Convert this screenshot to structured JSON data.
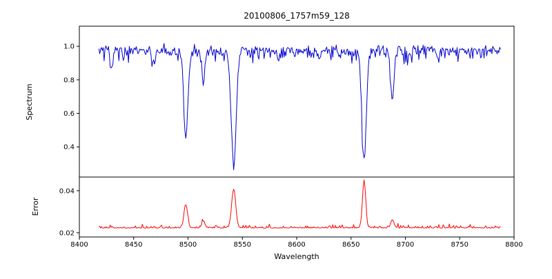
{
  "figure": {
    "title": "20100806_1757m59_128",
    "background": "#ffffff",
    "frame_color": "#000000",
    "text_color": "#000000"
  },
  "axes": {
    "xlabel": "Wavelength",
    "xlim": [
      8400,
      8800
    ],
    "xticks": [
      8400,
      8450,
      8500,
      8550,
      8600,
      8650,
      8700,
      8750,
      8800
    ],
    "xtick_labels": [
      "8400",
      "8450",
      "8500",
      "8550",
      "8600",
      "8650",
      "8700",
      "8750",
      "8800"
    ]
  },
  "chart_data": [
    {
      "type": "line",
      "title": "20100806_1757m59_128",
      "series_name": "spectrum",
      "ylabel": "Spectrum",
      "color": "#0000cc",
      "ylim": [
        0.22,
        1.12
      ],
      "ytick_values": [
        0.4,
        0.6,
        0.8,
        1.0
      ],
      "ytick_labels": [
        "0.4",
        "0.6",
        "0.8",
        "1.0"
      ],
      "x_range": [
        8418,
        8788
      ],
      "x_step": 0.8,
      "continuum": 0.975,
      "noise_sigma": 0.014,
      "absorption_lines": [
        {
          "center": 8498,
          "depth": 0.515,
          "width": 1.9
        },
        {
          "center": 8542,
          "depth": 0.675,
          "width": 2.3
        },
        {
          "center": 8662,
          "depth": 0.645,
          "width": 2.1
        },
        {
          "center": 8688,
          "depth": 0.255,
          "width": 1.6
        },
        {
          "center": 8514,
          "depth": 0.175,
          "width": 1.4
        },
        {
          "center": 8430,
          "depth": 0.1,
          "width": 1.3
        },
        {
          "center": 8468,
          "depth": 0.08,
          "width": 1.2
        },
        {
          "center": 8583,
          "depth": 0.06,
          "width": 1.2
        },
        {
          "center": 8621,
          "depth": 0.055,
          "width": 1.2
        },
        {
          "center": 8730,
          "depth": 0.05,
          "width": 1.2
        }
      ]
    },
    {
      "type": "line",
      "series_name": "error",
      "ylabel": "Error",
      "color": "#ff0000",
      "ylim": [
        0.018,
        0.0465
      ],
      "ytick_values": [
        0.02,
        0.04
      ],
      "ytick_labels": [
        "0.02",
        "0.04"
      ],
      "x_range": [
        8418,
        8788
      ],
      "x_step": 0.8,
      "baseline": 0.0222,
      "noise_sigma": 0.0005,
      "spikes": [
        {
          "center": 8498,
          "height": 0.011,
          "width": 1.6
        },
        {
          "center": 8542,
          "height": 0.0185,
          "width": 1.9
        },
        {
          "center": 8662,
          "height": 0.0225,
          "width": 1.5
        },
        {
          "center": 8688,
          "height": 0.004,
          "width": 1.4
        },
        {
          "center": 8514,
          "height": 0.0032,
          "width": 1.4
        }
      ]
    }
  ]
}
